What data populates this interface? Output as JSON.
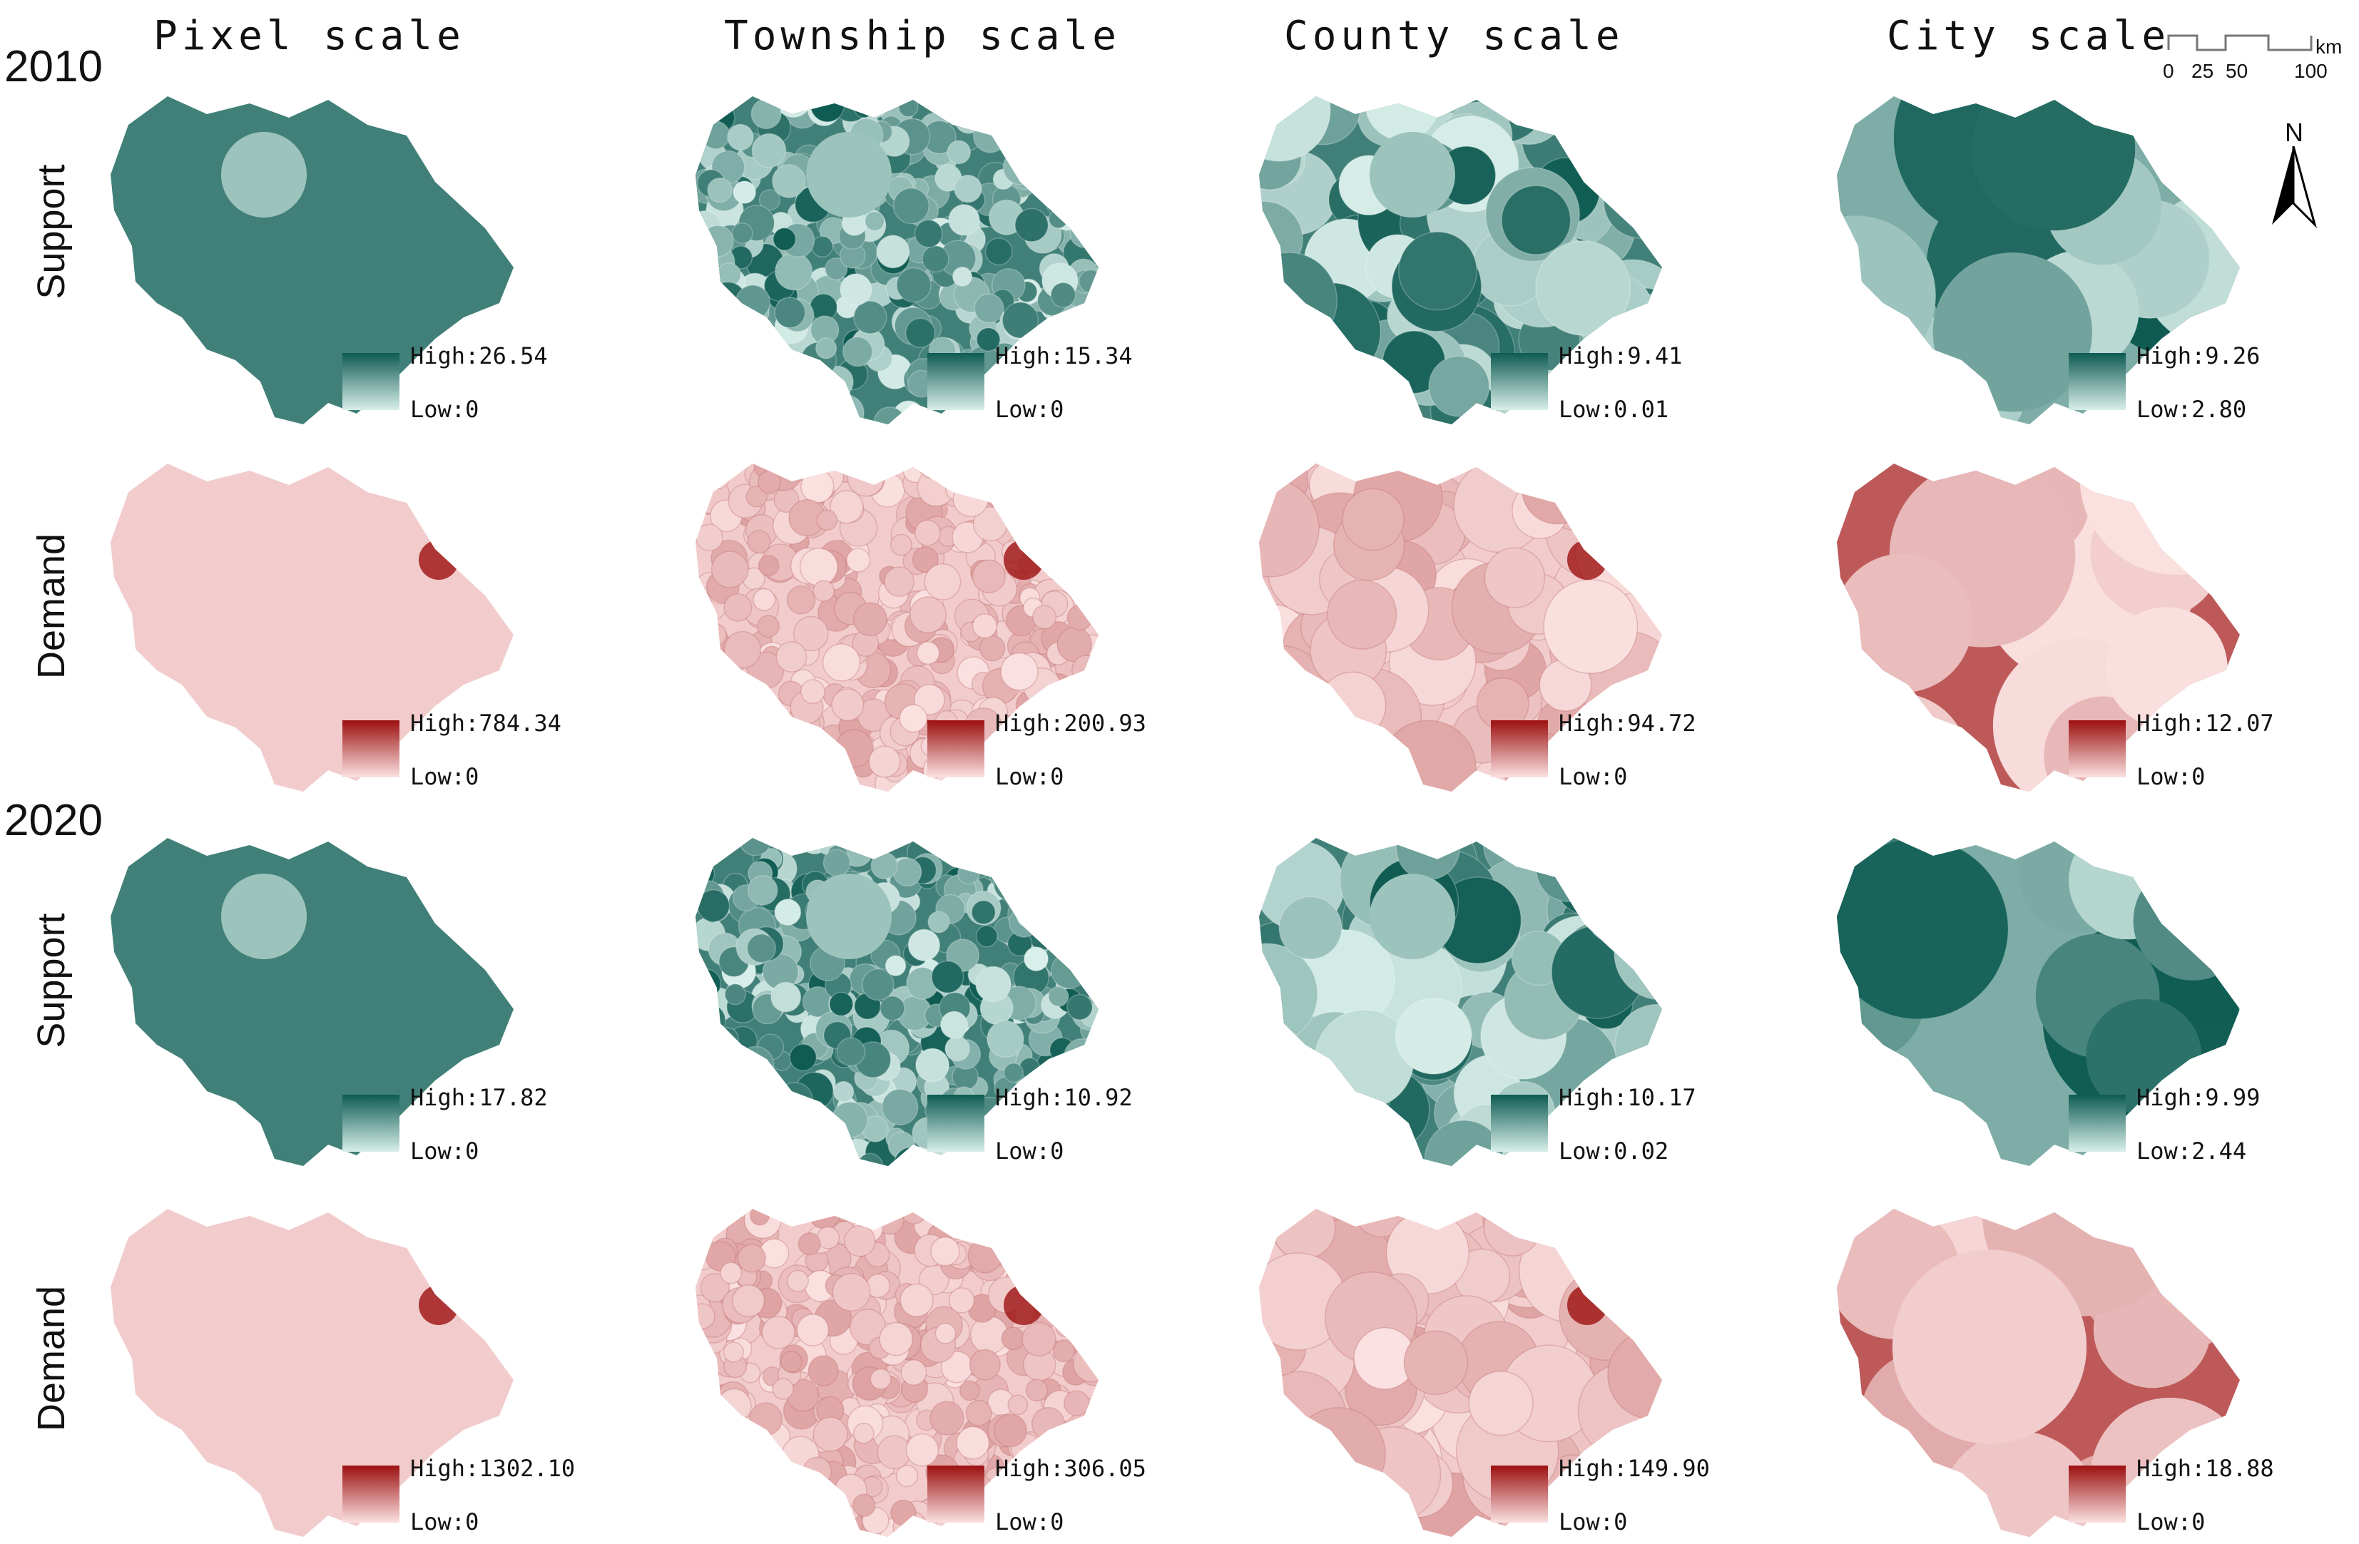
{
  "columns": [
    "Pixel scale",
    "Township scale",
    "County scale",
    "City scale"
  ],
  "years": [
    "2010",
    "2020"
  ],
  "row_labels": {
    "support": "Support",
    "demand": "Demand"
  },
  "colors": {
    "support_dark": "#0e5b52",
    "support_light": "#d9efea",
    "demand_dark": "#9c1010",
    "demand_light": "#fbe1e1"
  },
  "legends": {
    "y2010_support": [
      {
        "high": "High:26.54",
        "low": "Low:0"
      },
      {
        "high": "High:15.34",
        "low": "Low:0"
      },
      {
        "high": "High:9.41",
        "low": "Low:0.01"
      },
      {
        "high": "High:9.26",
        "low": "Low:2.80"
      }
    ],
    "y2010_demand": [
      {
        "high": "High:784.34",
        "low": "Low:0"
      },
      {
        "high": "High:200.93",
        "low": "Low:0"
      },
      {
        "high": "High:94.72",
        "low": "Low:0"
      },
      {
        "high": "High:12.07",
        "low": "Low:0"
      }
    ],
    "y2020_support": [
      {
        "high": "High:17.82",
        "low": "Low:0"
      },
      {
        "high": "High:10.92",
        "low": "Low:0"
      },
      {
        "high": "High:10.17",
        "low": "Low:0.02"
      },
      {
        "high": "High:9.99",
        "low": "Low:2.44"
      }
    ],
    "y2020_demand": [
      {
        "high": "High:1302.10",
        "low": "Low:0"
      },
      {
        "high": "High:306.05",
        "low": "Low:0"
      },
      {
        "high": "High:149.90",
        "low": "Low:0"
      },
      {
        "high": "High:18.88",
        "low": "Low:0"
      }
    ]
  },
  "scale_bar": {
    "ticks": [
      "0",
      "25",
      "50",
      "100"
    ],
    "unit": "km"
  },
  "north_label": "N"
}
